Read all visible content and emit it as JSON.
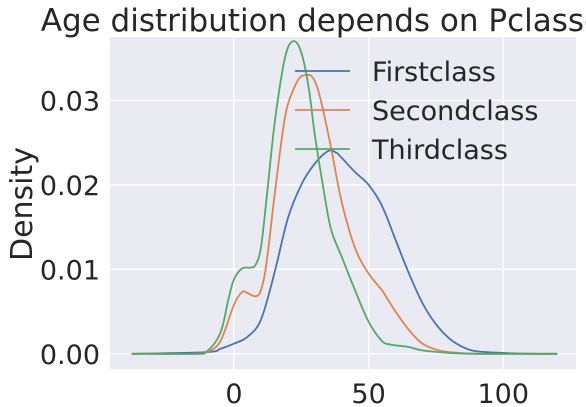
{
  "chart_data": {
    "type": "line",
    "title": "Age distribution depends on Pclasses",
    "xlabel": "",
    "ylabel": "Density",
    "xlim": [
      -46,
      127
    ],
    "ylim": [
      -0.0018,
      0.0375
    ],
    "grid": true,
    "legend_position": "top-right",
    "x_ticks": [
      0,
      50,
      100
    ],
    "x_tick_labels": [
      "0",
      "50",
      "100"
    ],
    "y_ticks": [
      0.0,
      0.01,
      0.02,
      0.03
    ],
    "y_tick_labels": [
      "0.00",
      "0.01",
      "0.02",
      "0.03"
    ],
    "colors": {
      "background": "#eaeaf2",
      "grid": "#ffffff",
      "Firstclass": "#4c72b0",
      "Secondclass": "#dd8452",
      "Thirdclass": "#55a868"
    },
    "series": [
      {
        "name": "Firstclass",
        "x": [
          -38,
          -10,
          -5,
          0,
          5,
          10,
          15,
          20,
          25,
          30,
          35,
          38,
          40,
          45,
          50,
          55,
          60,
          65,
          70,
          75,
          80,
          85,
          90,
          100,
          110,
          120
        ],
        "y": [
          0.0,
          0.0002,
          0.0006,
          0.0012,
          0.002,
          0.004,
          0.0095,
          0.016,
          0.02,
          0.0225,
          0.024,
          0.0238,
          0.0232,
          0.0215,
          0.02,
          0.0175,
          0.0135,
          0.0095,
          0.006,
          0.0035,
          0.0018,
          0.0008,
          0.0003,
          0.0001,
          0.0,
          0.0
        ]
      },
      {
        "name": "Secondclass",
        "x": [
          -38,
          -15,
          -10,
          -5,
          0,
          3,
          5,
          8,
          10,
          12,
          15,
          18,
          20,
          24,
          27,
          29,
          31,
          33,
          36,
          40,
          45,
          50,
          55,
          60,
          65,
          70,
          75,
          80,
          90,
          100,
          120
        ],
        "y": [
          0.0,
          0.0,
          0.0002,
          0.0015,
          0.0058,
          0.0073,
          0.0072,
          0.0068,
          0.0075,
          0.0105,
          0.0185,
          0.026,
          0.0295,
          0.0325,
          0.033,
          0.0328,
          0.0315,
          0.029,
          0.0245,
          0.018,
          0.0125,
          0.0095,
          0.0075,
          0.005,
          0.0028,
          0.0012,
          0.0005,
          0.0002,
          0.0,
          0.0,
          0.0
        ]
      },
      {
        "name": "Thirdclass",
        "x": [
          -38,
          -15,
          -10,
          -5,
          -2,
          0,
          3,
          6,
          8,
          10,
          12,
          15,
          18,
          20,
          22,
          24,
          26,
          28,
          30,
          33,
          36,
          40,
          45,
          50,
          55,
          58,
          60,
          65,
          70,
          80,
          90,
          100,
          120
        ],
        "y": [
          0.0,
          0.0,
          0.0003,
          0.0025,
          0.0065,
          0.0088,
          0.0101,
          0.0102,
          0.0105,
          0.0125,
          0.018,
          0.027,
          0.0335,
          0.0362,
          0.037,
          0.0365,
          0.0345,
          0.031,
          0.026,
          0.02,
          0.0148,
          0.0115,
          0.0075,
          0.0038,
          0.0015,
          0.0011,
          0.001,
          0.0008,
          0.0004,
          0.0001,
          0.0,
          0.0,
          0.0
        ]
      }
    ]
  }
}
